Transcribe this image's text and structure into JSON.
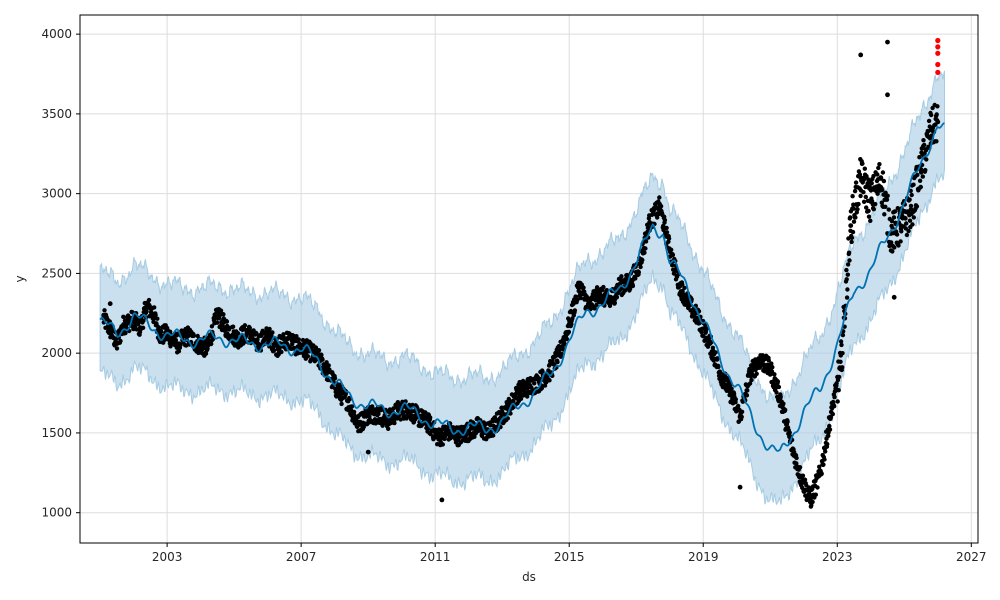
{
  "chart_data": {
    "type": "scatter",
    "xlabel": "ds",
    "ylabel": "y",
    "xlim": [
      2000.4,
      2027.2
    ],
    "ylim": [
      810,
      4120
    ],
    "x_ticks": [
      2003,
      2007,
      2011,
      2015,
      2019,
      2023,
      2027
    ],
    "y_ticks": [
      1000,
      1500,
      2000,
      2500,
      3000,
      3500,
      4000
    ],
    "grid": true,
    "colors": {
      "observed": "#000000",
      "anomaly": "#ff0000",
      "forecast": "#0072b2",
      "uncertainty_band": "#a6cbe3"
    },
    "series": [
      {
        "kind": "observed",
        "points": [
          [
            2001.1,
            2220
          ],
          [
            2001.3,
            2150
          ],
          [
            2001.5,
            2060
          ],
          [
            2001.7,
            2180
          ],
          [
            2002.0,
            2210
          ],
          [
            2002.2,
            2160
          ],
          [
            2002.4,
            2300
          ],
          [
            2002.6,
            2240
          ],
          [
            2002.8,
            2110
          ],
          [
            2003.0,
            2120
          ],
          [
            2003.3,
            2060
          ],
          [
            2003.6,
            2110
          ],
          [
            2003.9,
            2060
          ],
          [
            2004.2,
            2030
          ],
          [
            2004.5,
            2240
          ],
          [
            2004.8,
            2150
          ],
          [
            2005.1,
            2090
          ],
          [
            2005.4,
            2130
          ],
          [
            2005.7,
            2060
          ],
          [
            2006.0,
            2110
          ],
          [
            2006.3,
            2040
          ],
          [
            2006.6,
            2090
          ],
          [
            2006.9,
            2040
          ],
          [
            2007.2,
            2020
          ],
          [
            2007.5,
            1970
          ],
          [
            2007.8,
            1880
          ],
          [
            2008.1,
            1760
          ],
          [
            2008.4,
            1700
          ],
          [
            2008.7,
            1550
          ],
          [
            2009.0,
            1620
          ],
          [
            2009.3,
            1620
          ],
          [
            2009.6,
            1580
          ],
          [
            2009.9,
            1640
          ],
          [
            2010.2,
            1650
          ],
          [
            2010.5,
            1600
          ],
          [
            2010.8,
            1560
          ],
          [
            2011.1,
            1470
          ],
          [
            2011.4,
            1510
          ],
          [
            2011.7,
            1480
          ],
          [
            2012.0,
            1510
          ],
          [
            2012.3,
            1540
          ],
          [
            2012.6,
            1500
          ],
          [
            2012.9,
            1580
          ],
          [
            2013.2,
            1660
          ],
          [
            2013.5,
            1760
          ],
          [
            2013.8,
            1790
          ],
          [
            2014.1,
            1820
          ],
          [
            2014.4,
            1880
          ],
          [
            2014.7,
            1990
          ],
          [
            2015.0,
            2180
          ],
          [
            2015.3,
            2420
          ],
          [
            2015.6,
            2290
          ],
          [
            2015.9,
            2380
          ],
          [
            2016.2,
            2320
          ],
          [
            2016.5,
            2420
          ],
          [
            2016.8,
            2440
          ],
          [
            2017.1,
            2560
          ],
          [
            2017.4,
            2820
          ],
          [
            2017.7,
            2920
          ],
          [
            2018.0,
            2650
          ],
          [
            2018.3,
            2420
          ],
          [
            2018.6,
            2300
          ],
          [
            2018.9,
            2200
          ],
          [
            2019.2,
            2060
          ],
          [
            2019.5,
            1880
          ],
          [
            2019.8,
            1760
          ],
          [
            2020.1,
            1600
          ],
          [
            2020.4,
            1870
          ],
          [
            2020.7,
            1960
          ],
          [
            2021.0,
            1900
          ],
          [
            2021.3,
            1720
          ],
          [
            2021.6,
            1450
          ],
          [
            2021.9,
            1230
          ],
          [
            2022.2,
            1080
          ],
          [
            2022.5,
            1250
          ],
          [
            2022.8,
            1600
          ],
          [
            2023.1,
            1900
          ],
          [
            2023.4,
            2800
          ],
          [
            2023.7,
            3100
          ],
          [
            2024.0,
            2950
          ],
          [
            2024.3,
            3100
          ],
          [
            2024.6,
            2750
          ],
          [
            2024.9,
            2800
          ],
          [
            2025.2,
            2900
          ],
          [
            2025.5,
            3150
          ],
          [
            2025.8,
            3400
          ],
          [
            2026.0,
            3450
          ]
        ],
        "outliers": [
          [
            2001.3,
            2310
          ],
          [
            2009.0,
            1380
          ],
          [
            2011.2,
            1080
          ],
          [
            2020.1,
            1160
          ],
          [
            2023.7,
            3870
          ],
          [
            2024.5,
            3950
          ],
          [
            2024.5,
            3620
          ],
          [
            2024.7,
            2350
          ]
        ]
      },
      {
        "kind": "anomaly",
        "points": [
          [
            2026.0,
            3960
          ],
          [
            2026.0,
            3920
          ],
          [
            2026.0,
            3880
          ],
          [
            2026.0,
            3810
          ],
          [
            2026.0,
            3760
          ]
        ]
      },
      {
        "kind": "forecast",
        "points": [
          [
            2001.0,
            2200
          ],
          [
            2001.5,
            2120
          ],
          [
            2002.0,
            2230
          ],
          [
            2002.5,
            2170
          ],
          [
            2003.0,
            2110
          ],
          [
            2003.5,
            2090
          ],
          [
            2004.0,
            2080
          ],
          [
            2004.5,
            2100
          ],
          [
            2005.0,
            2080
          ],
          [
            2005.5,
            2060
          ],
          [
            2006.0,
            2060
          ],
          [
            2006.5,
            2040
          ],
          [
            2007.0,
            2030
          ],
          [
            2007.5,
            1950
          ],
          [
            2008.0,
            1820
          ],
          [
            2008.5,
            1710
          ],
          [
            2009.0,
            1680
          ],
          [
            2009.5,
            1630
          ],
          [
            2010.0,
            1660
          ],
          [
            2010.5,
            1610
          ],
          [
            2011.0,
            1560
          ],
          [
            2011.5,
            1520
          ],
          [
            2012.0,
            1540
          ],
          [
            2012.5,
            1520
          ],
          [
            2013.0,
            1570
          ],
          [
            2013.5,
            1670
          ],
          [
            2014.0,
            1760
          ],
          [
            2014.5,
            1880
          ],
          [
            2015.0,
            2080
          ],
          [
            2015.5,
            2260
          ],
          [
            2016.0,
            2310
          ],
          [
            2016.5,
            2400
          ],
          [
            2017.0,
            2570
          ],
          [
            2017.5,
            2790
          ],
          [
            2017.8,
            2760
          ],
          [
            2018.0,
            2580
          ],
          [
            2018.5,
            2420
          ],
          [
            2019.0,
            2200
          ],
          [
            2019.5,
            1960
          ],
          [
            2020.0,
            1800
          ],
          [
            2020.5,
            1560
          ],
          [
            2021.0,
            1400
          ],
          [
            2021.3,
            1360
          ],
          [
            2021.7,
            1510
          ],
          [
            2022.0,
            1630
          ],
          [
            2022.5,
            1780
          ],
          [
            2023.0,
            2050
          ],
          [
            2023.5,
            2390
          ],
          [
            2024.0,
            2520
          ],
          [
            2024.5,
            2730
          ],
          [
            2025.0,
            2940
          ],
          [
            2025.3,
            3090
          ],
          [
            2025.7,
            3290
          ],
          [
            2026.0,
            3430
          ],
          [
            2026.2,
            3390
          ]
        ]
      },
      {
        "kind": "uncertainty_band",
        "halfwidth": 320
      }
    ]
  }
}
